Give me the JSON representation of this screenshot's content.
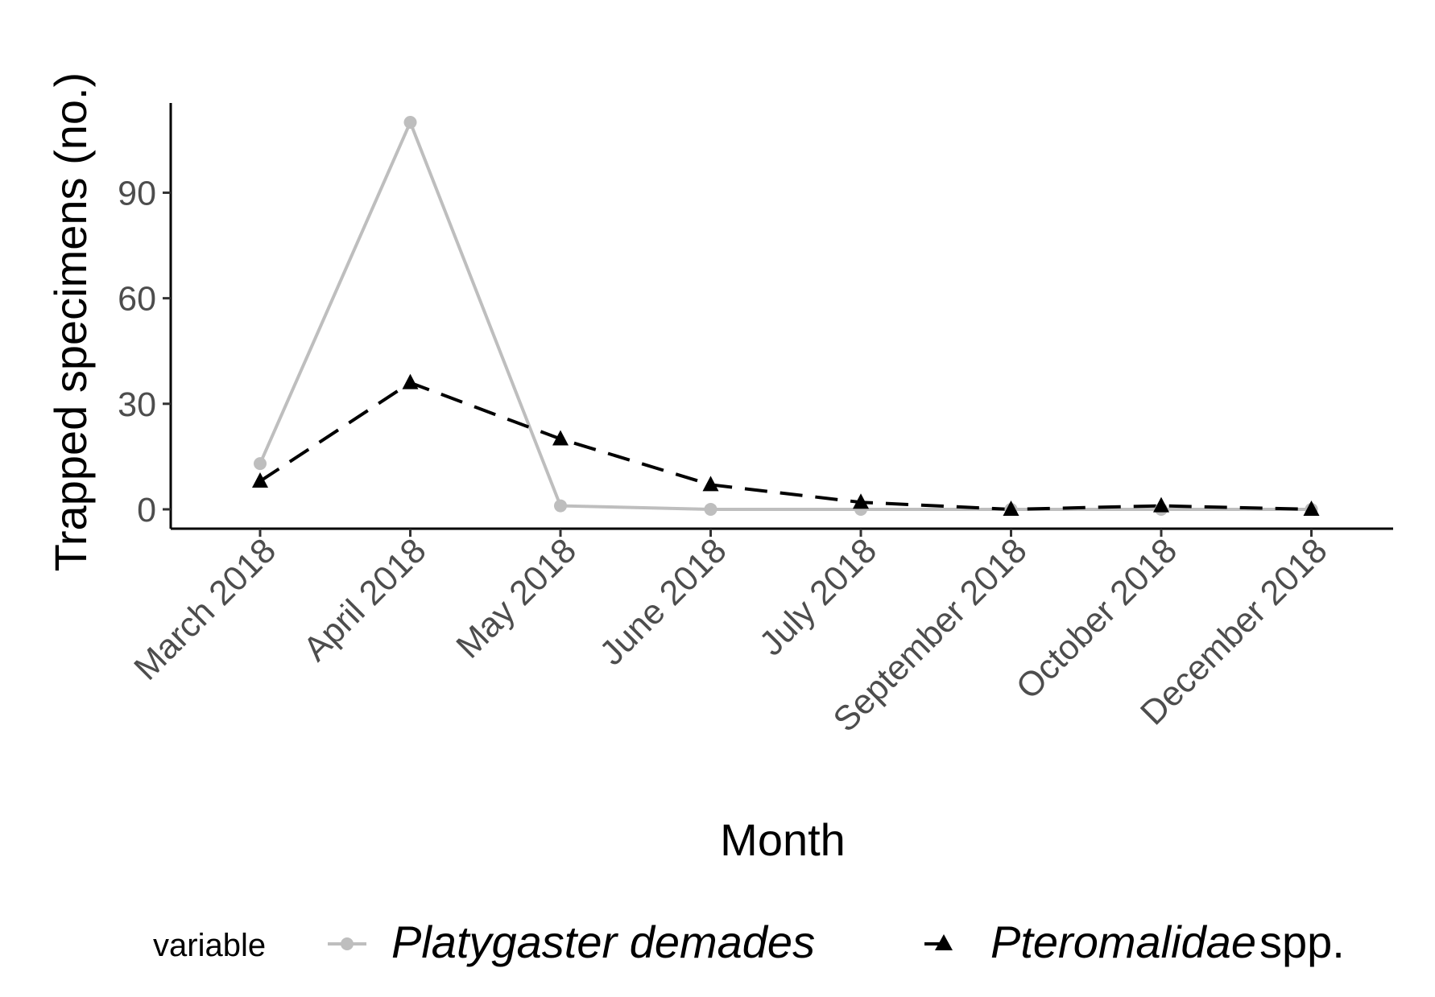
{
  "chart_data": {
    "type": "line",
    "categories": [
      "March 2018",
      "April 2018",
      "May 2018",
      "June 2018",
      "July 2018",
      "September 2018",
      "October 2018",
      "December 2018"
    ],
    "series": [
      {
        "name": "Platygaster demades",
        "name_italic": "Platygaster demades",
        "name_suffix": "",
        "color": "#bebebe",
        "marker": "circle",
        "line_style": "solid",
        "values": [
          13,
          110,
          1,
          0,
          0,
          0,
          0,
          0
        ]
      },
      {
        "name": "Pteromalidae spp.",
        "name_italic": "Pteromalidae",
        "name_suffix": "spp.",
        "color": "#000000",
        "marker": "triangle",
        "line_style": "dashed",
        "values": [
          8,
          36,
          20,
          7,
          2,
          0,
          1,
          0
        ]
      }
    ],
    "xlabel": "Month",
    "ylabel": "Trapped specimens (no.)",
    "yticks": [
      "0",
      "30",
      "60",
      "90"
    ],
    "yticks_values": [
      0,
      30,
      60,
      90
    ],
    "ylim": [
      -5.5,
      115.5
    ],
    "legend_title": "variable",
    "legend_position": "bottom",
    "grid": false
  }
}
